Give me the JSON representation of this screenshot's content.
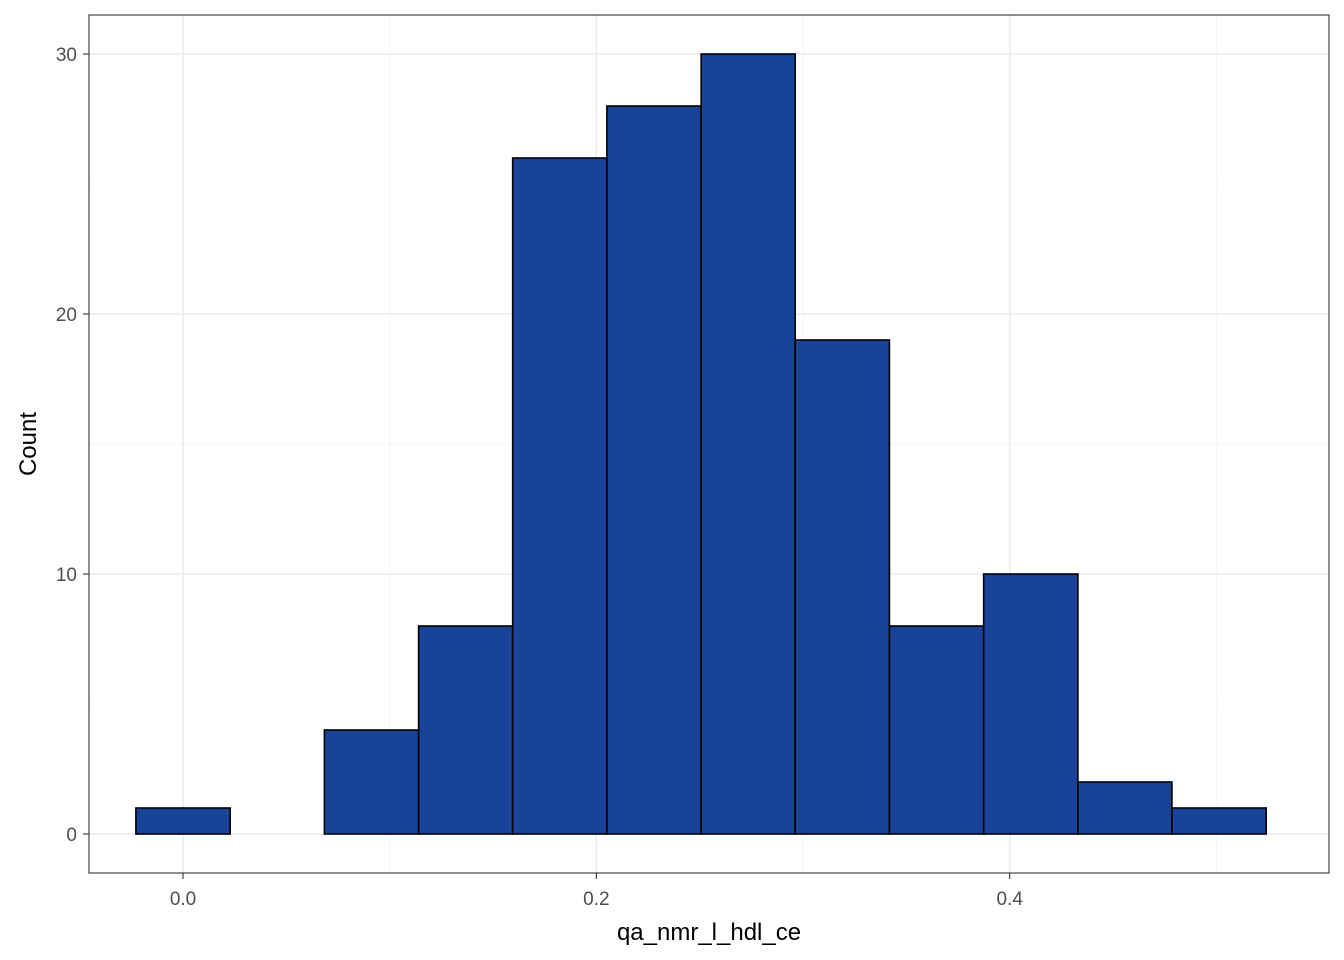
{
  "chart_data": {
    "type": "histogram",
    "title": "",
    "xlabel": "qa_nmr_l_hdl_ce",
    "ylabel": "Count",
    "xlim": [
      -0.0455,
      0.5545
    ],
    "ylim": [
      -1.5,
      31.5
    ],
    "x_ticks": [
      0.0,
      0.2,
      0.4
    ],
    "x_tick_labels": [
      "0.0",
      "0.2",
      "0.4"
    ],
    "x_minor_ticks": [
      0.1,
      0.3,
      0.5
    ],
    "y_ticks": [
      0,
      10,
      20,
      30
    ],
    "y_tick_labels": [
      "0",
      "10",
      "20",
      "30"
    ],
    "y_minor_ticks": [
      5,
      15,
      25
    ],
    "grid": true,
    "legend": "none",
    "bins": [
      {
        "x0": -0.0228,
        "x1": 0.0228,
        "count": 1
      },
      {
        "x0": 0.0228,
        "x1": 0.0684,
        "count": 0
      },
      {
        "x0": 0.0684,
        "x1": 0.114,
        "count": 4
      },
      {
        "x0": 0.114,
        "x1": 0.1595,
        "count": 8
      },
      {
        "x0": 0.1595,
        "x1": 0.2051,
        "count": 26
      },
      {
        "x0": 0.2051,
        "x1": 0.2507,
        "count": 28
      },
      {
        "x0": 0.2507,
        "x1": 0.2962,
        "count": 30
      },
      {
        "x0": 0.2962,
        "x1": 0.3418,
        "count": 19
      },
      {
        "x0": 0.3418,
        "x1": 0.3874,
        "count": 8
      },
      {
        "x0": 0.3874,
        "x1": 0.433,
        "count": 10
      },
      {
        "x0": 0.433,
        "x1": 0.4785,
        "count": 2
      },
      {
        "x0": 0.4785,
        "x1": 0.5241,
        "count": 1
      }
    ],
    "colors": {
      "bar_fill": "#184399",
      "bar_stroke": "#000000",
      "panel_border": "#333333",
      "grid_major": "#ebebeb",
      "grid_minor": "#f5f5f5",
      "tick": "#333333"
    }
  }
}
